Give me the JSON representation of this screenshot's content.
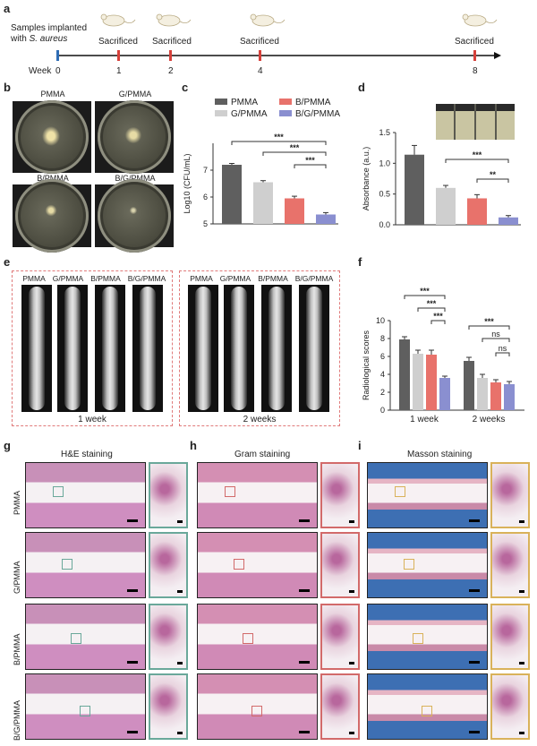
{
  "panels": {
    "a": {
      "label": "a",
      "implant_text_line1": "Samples implanted",
      "implant_text_line2_prefix": "with ",
      "implant_text_line2_species": "S. aureus",
      "week_label": "Week",
      "ticks": [
        "0",
        "1",
        "2",
        "4",
        "8"
      ],
      "sacrificed": [
        "Sacrificed",
        "Sacrificed",
        "Sacrificed",
        "Sacrificed"
      ]
    },
    "b": {
      "label": "b",
      "dishes": [
        "PMMA",
        "G/PMMA",
        "B/PMMA",
        "B/G/PMMA"
      ]
    },
    "c": {
      "label": "c"
    },
    "d": {
      "label": "d"
    },
    "e": {
      "label": "e",
      "groups": [
        "PMMA",
        "G/PMMA",
        "B/PMMA",
        "B/G/PMMA"
      ],
      "week1": "1 week",
      "week2": "2 weeks"
    },
    "f": {
      "label": "f"
    },
    "g": {
      "label": "g",
      "title": "H&E staining"
    },
    "h": {
      "label": "h",
      "title": "Gram staining"
    },
    "i": {
      "label": "i",
      "title": "Masson staining"
    },
    "row_labels": [
      "PMMA",
      "G/PMMA",
      "B/PMMA",
      "B/G/PMMA"
    ]
  },
  "colors": {
    "PMMA": "#5f5f5f",
    "G/PMMA": "#cfcfcf",
    "B/PMMA": "#e8726b",
    "B/G/PMMA": "#8a8fd0",
    "timeline_blue": "#2f6db5",
    "timeline_red": "#d6403a",
    "he_frame": "#6aa89a",
    "gram_frame": "#d26a6a",
    "masson_frame": "#d9b25a"
  },
  "chart_data": [
    {
      "id": "c",
      "type": "bar",
      "ylabel": "Log10 (CFU/mL)",
      "ylim": [
        5,
        8
      ],
      "yticks": [
        "5",
        "6",
        "7"
      ],
      "categories": [
        "PMMA",
        "G/PMMA",
        "B/PMMA",
        "B/G/PMMA"
      ],
      "values": [
        7.2,
        6.55,
        5.95,
        5.35
      ],
      "errors": [
        0.05,
        0.06,
        0.08,
        0.07
      ],
      "legend": [
        "PMMA",
        "B/PMMA",
        "G/PMMA",
        "B/G/PMMA"
      ],
      "significance": [
        "***",
        "***",
        "***"
      ]
    },
    {
      "id": "d",
      "type": "bar",
      "ylabel": "Absorbance (a.u.)",
      "ylim": [
        0,
        1.5
      ],
      "yticks": [
        "0.0",
        "0.5",
        "1.0",
        "1.5"
      ],
      "categories": [
        "PMMA",
        "G/PMMA",
        "B/PMMA",
        "B/G/PMMA"
      ],
      "values": [
        1.14,
        0.6,
        0.43,
        0.12
      ],
      "errors": [
        0.15,
        0.04,
        0.06,
        0.03
      ],
      "significance": [
        "***",
        "**"
      ]
    },
    {
      "id": "f",
      "type": "bar",
      "ylabel": "Radiological scores",
      "ylim": [
        0,
        10
      ],
      "yticks": [
        "0",
        "2",
        "4",
        "6",
        "8",
        "10"
      ],
      "categories": [
        "1 week",
        "2 weeks"
      ],
      "series": [
        {
          "name": "PMMA",
          "values": [
            7.9,
            5.5
          ]
        },
        {
          "name": "G/PMMA",
          "values": [
            6.3,
            3.6
          ]
        },
        {
          "name": "B/PMMA",
          "values": [
            6.2,
            3.1
          ]
        },
        {
          "name": "B/G/PMMA",
          "values": [
            3.6,
            2.9
          ]
        }
      ],
      "errors": [
        [
          0.3,
          0.4
        ],
        [
          0.4,
          0.4
        ],
        [
          0.5,
          0.3
        ],
        [
          0.2,
          0.3
        ]
      ],
      "significance": [
        "***",
        "***",
        "***",
        "***",
        "ns",
        "ns"
      ]
    }
  ]
}
